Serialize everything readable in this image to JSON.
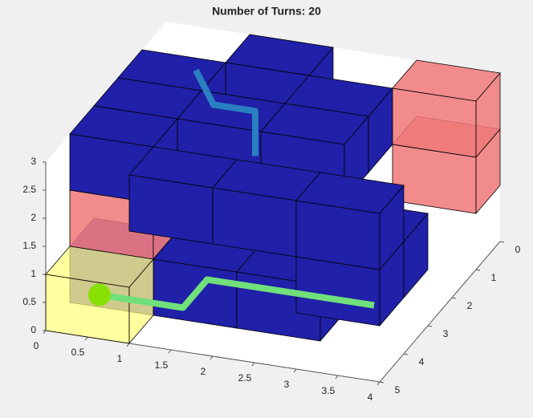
{
  "chart_data": {
    "type": "blocks3d",
    "title": "Number of Turns: 20",
    "xlim": [
      0,
      4
    ],
    "ylim": [
      0,
      5
    ],
    "zlim": [
      0,
      3
    ],
    "xticks": [
      0,
      0.5,
      1,
      1.5,
      2,
      2.5,
      3,
      3.5,
      4
    ],
    "yticks": [
      0,
      1,
      2,
      3,
      4,
      5
    ],
    "zticks": [
      0,
      0.5,
      1,
      1.5,
      2,
      2.5,
      3
    ],
    "blocks": [
      {
        "x": 1,
        "y": 0,
        "z": 2,
        "color": "#2020a8"
      },
      {
        "x": 0,
        "y": 1,
        "z": 2,
        "color": "#2020a8"
      },
      {
        "x": 0,
        "y": 3,
        "z": 0,
        "color": "rgba(40,20,170,0.75)"
      },
      {
        "x": 3,
        "y": 0,
        "z": 1,
        "color": "rgba(240,120,120,0.85)"
      },
      {
        "x": 0,
        "y": 2,
        "z": 2,
        "color": "#2020a8"
      },
      {
        "x": 0,
        "y": 3,
        "z": 1,
        "color": "rgba(240,120,120,0.85)"
      },
      {
        "x": 1,
        "y": 3,
        "z": 0,
        "color": "#2020a8"
      },
      {
        "x": 0,
        "y": 4,
        "z": 0,
        "color": "rgba(255,255,120,0.7)"
      },
      {
        "x": 2,
        "y": 1,
        "z": 2,
        "color": "#2020a8"
      },
      {
        "x": 3,
        "y": 0,
        "z": 2,
        "color": "rgba(240,120,120,0.85)"
      },
      {
        "x": 2,
        "y": 3,
        "z": 0,
        "color": "#2020a8"
      },
      {
        "x": 0,
        "y": 3,
        "z": 2,
        "color": "#2020a8"
      },
      {
        "x": 1,
        "y": 2,
        "z": 2,
        "color": "#2020a8"
      },
      {
        "x": 2,
        "y": 2,
        "z": 2,
        "color": "#2020a8"
      },
      {
        "x": 1,
        "y": 4,
        "z": 2,
        "color": "#2020a8"
      },
      {
        "x": 3,
        "y": 3,
        "z": 1,
        "color": "#2020a8"
      },
      {
        "x": 2,
        "y": 4,
        "z": 2,
        "color": "#2020a8"
      },
      {
        "x": 3,
        "y": 4,
        "z": 1,
        "color": "#2020a8"
      },
      {
        "x": 3,
        "y": 4,
        "z": 2,
        "color": "#2020a8"
      }
    ],
    "paths": [
      {
        "color": "#6fe07a",
        "x": [
          0.5,
          1.5,
          1.5,
          3.5
        ],
        "y": [
          4.5,
          4.5,
          3.5,
          3.5
        ],
        "z": [
          0.5,
          0.5,
          0.5,
          0.5
        ]
      },
      {
        "color": "#2a7fc0",
        "x": [
          0.5,
          1,
          1.5,
          1.5
        ],
        "y": [
          0.5,
          1.5,
          1.5,
          1.5
        ],
        "z": [
          2.5,
          2.5,
          2.5,
          1.7
        ]
      }
    ],
    "start_marker_color": "#88e000"
  }
}
